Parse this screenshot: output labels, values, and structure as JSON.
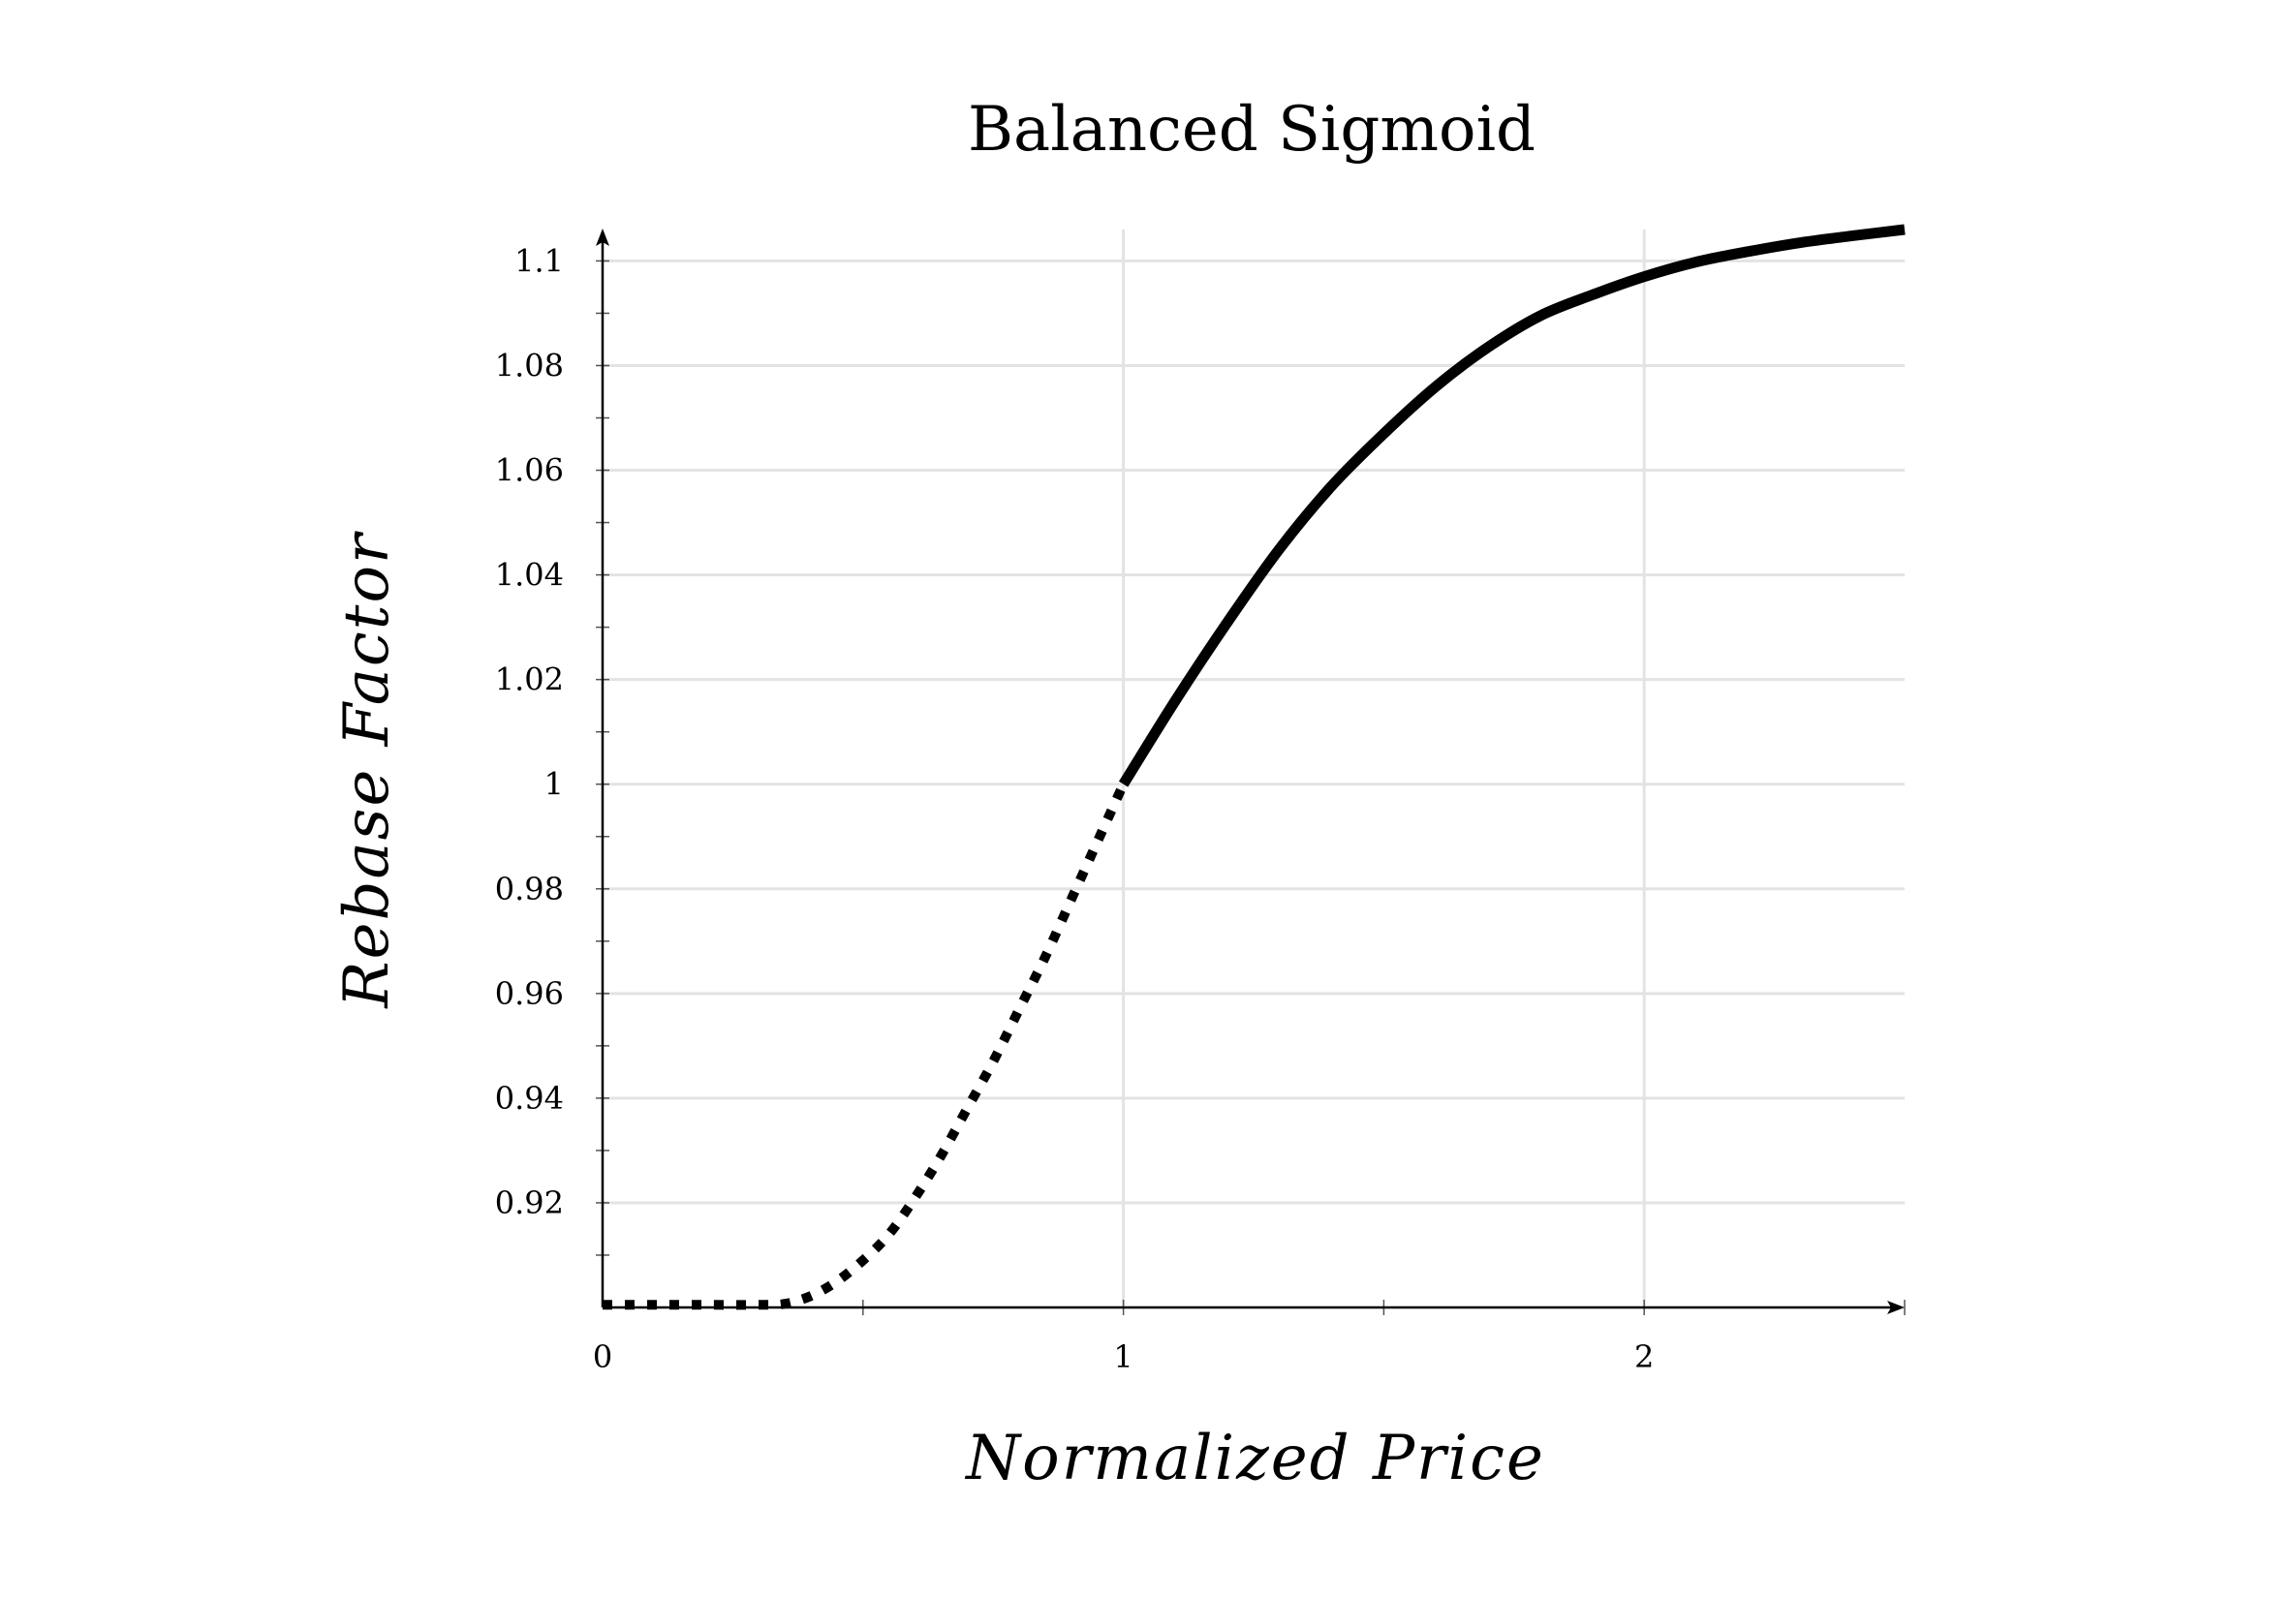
{
  "chart_data": {
    "type": "line",
    "title": "Balanced Sigmoid",
    "xlabel": "Normalized Price",
    "ylabel": "Rebase Factor",
    "xlim": [
      0,
      2.5
    ],
    "ylim": [
      0.9,
      1.106
    ],
    "x_ticks": [
      {
        "value": 0,
        "label": "0"
      },
      {
        "value": 1,
        "label": "1"
      },
      {
        "value": 2,
        "label": "2"
      }
    ],
    "y_ticks": [
      {
        "value": 0.92,
        "label": "0.92"
      },
      {
        "value": 0.94,
        "label": "0.94"
      },
      {
        "value": 0.96,
        "label": "0.96"
      },
      {
        "value": 0.98,
        "label": "0.98"
      },
      {
        "value": 1.0,
        "label": "1"
      },
      {
        "value": 1.02,
        "label": "1.02"
      },
      {
        "value": 1.04,
        "label": "1.04"
      },
      {
        "value": 1.06,
        "label": "1.06"
      },
      {
        "value": 1.08,
        "label": "1.08"
      },
      {
        "value": 1.1,
        "label": "1.1"
      }
    ],
    "grid": true,
    "series": [
      {
        "style": "dotted",
        "color": "#000000",
        "points": [
          [
            0.0,
            0.9005
          ],
          [
            0.1,
            0.9005
          ],
          [
            0.2,
            0.9005
          ],
          [
            0.3,
            0.9005
          ],
          [
            0.35,
            0.9007
          ],
          [
            0.4,
            0.9022
          ],
          [
            0.45,
            0.905
          ],
          [
            0.5,
            0.909
          ],
          [
            0.55,
            0.914
          ],
          [
            0.6,
            0.921
          ],
          [
            0.65,
            0.929
          ],
          [
            0.7,
            0.938
          ],
          [
            0.75,
            0.947
          ],
          [
            0.8,
            0.957
          ],
          [
            0.85,
            0.967
          ],
          [
            0.9,
            0.978
          ],
          [
            0.95,
            0.989
          ],
          [
            1.0,
            1.0
          ]
        ]
      },
      {
        "style": "solid",
        "color": "#000000",
        "points": [
          [
            1.0,
            1.0
          ],
          [
            1.1,
            1.016
          ],
          [
            1.2,
            1.031
          ],
          [
            1.3,
            1.045
          ],
          [
            1.4,
            1.057
          ],
          [
            1.5,
            1.067
          ],
          [
            1.6,
            1.076
          ],
          [
            1.7,
            1.0835
          ],
          [
            1.8,
            1.0895
          ],
          [
            1.9,
            1.0935
          ],
          [
            2.0,
            1.097
          ],
          [
            2.1,
            1.0998
          ],
          [
            2.2,
            1.1018
          ],
          [
            2.3,
            1.1035
          ],
          [
            2.4,
            1.1048
          ],
          [
            2.5,
            1.106
          ]
        ]
      }
    ]
  }
}
